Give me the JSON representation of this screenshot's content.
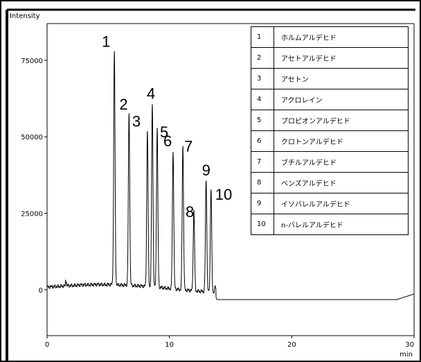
{
  "chart_data": {
    "type": "line",
    "ylabel": "Intensity",
    "xlabel": "min",
    "xlim": [
      0,
      30
    ],
    "ylim": [
      -15000,
      87000
    ],
    "x_ticks": [
      0,
      10,
      20,
      30
    ],
    "y_ticks": [
      0,
      25000,
      50000,
      75000
    ],
    "y_tick_labels": [
      "0",
      "25000",
      "50000",
      "75000"
    ],
    "x_tick_labels": [
      "0",
      "10",
      "20",
      "30"
    ],
    "peaks": [
      {
        "label": "1",
        "rt": 5.5,
        "height": 78000
      },
      {
        "label": "2",
        "rt": 6.7,
        "height": 57500
      },
      {
        "label": "3",
        "rt": 8.2,
        "height": 52000
      },
      {
        "label": "4",
        "rt": 8.6,
        "height": 61000
      },
      {
        "label": "5",
        "rt": 9.0,
        "height": 53000
      },
      {
        "label": "6",
        "rt": 10.3,
        "height": 45500
      },
      {
        "label": "7",
        "rt": 11.1,
        "height": 47000
      },
      {
        "label": "8",
        "rt": 12.0,
        "height": 26000
      },
      {
        "label": "9",
        "rt": 13.0,
        "height": 36000
      },
      {
        "label": "10",
        "rt": 13.4,
        "height": 33000
      }
    ],
    "legend": [
      {
        "num": "1",
        "name": "ホルムアルデヒド"
      },
      {
        "num": "2",
        "name": "アセトアルデヒド"
      },
      {
        "num": "3",
        "name": "アセトン"
      },
      {
        "num": "4",
        "name": "アクロレイン"
      },
      {
        "num": "5",
        "name": "プロピオンアルデヒド"
      },
      {
        "num": "6",
        "name": "クロトンアルデヒド"
      },
      {
        "num": "7",
        "name": "ブチルアルデヒド"
      },
      {
        "num": "8",
        "name": "ベンズアルデヒド"
      },
      {
        "num": "9",
        "name": "イソバレルアルデヒド"
      },
      {
        "num": "10",
        "name": "n-バレルアルデヒド"
      }
    ]
  }
}
